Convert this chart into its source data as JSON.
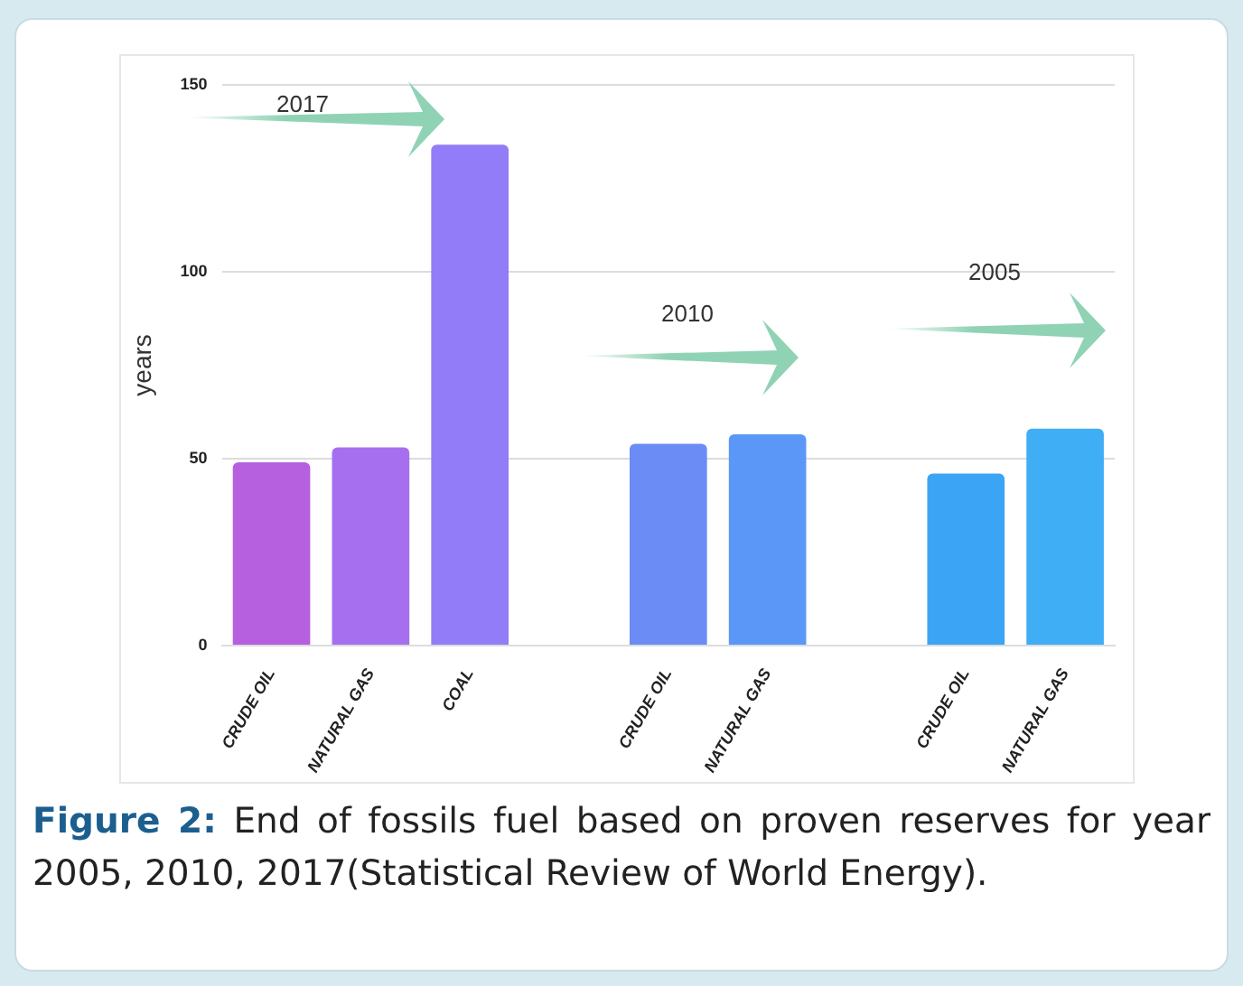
{
  "chart_data": {
    "type": "bar",
    "ylabel": "years",
    "categories": [
      "CRUDE OIL",
      "NATURAL GAS",
      "COAL",
      null,
      "CRUDE OIL",
      "NATURAL GAS",
      null,
      "CRUDE OIL",
      "NATURAL GAS"
    ],
    "values": [
      49,
      53,
      134,
      null,
      54,
      56.5,
      null,
      46,
      58
    ],
    "colors": [
      "#b660e0",
      "#a66ff0",
      "#937cf7",
      "#ffffff",
      "#6b8cf5",
      "#5b97f7",
      "#ffffff",
      "#3ca4f5",
      "#40aef5"
    ],
    "ylim": [
      0,
      150
    ],
    "yticks": [
      0,
      50,
      100,
      150
    ],
    "grid": "y",
    "legend": false,
    "annotations": [
      "2017",
      "2010",
      "2005",
      "Figure 2:",
      "End of fossils fuel based on proven reserves for year 2005, 2010, 2017(Statistical Review of World Energy)."
    ]
  }
}
